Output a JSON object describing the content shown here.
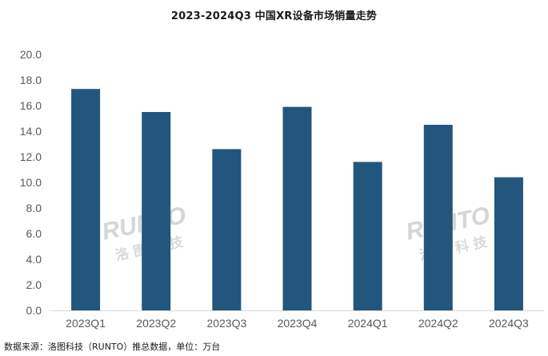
{
  "chart_data": {
    "type": "bar",
    "title": "2023-2024Q3 中国XR设备市场销量走势",
    "categories": [
      "2023Q1",
      "2023Q2",
      "2023Q3",
      "2023Q4",
      "2024Q1",
      "2024Q2",
      "2024Q3"
    ],
    "values": [
      17.3,
      15.5,
      12.6,
      15.9,
      11.6,
      14.5,
      10.4
    ],
    "ylim": [
      0,
      20
    ],
    "yticks": [
      "0.0",
      "2.0",
      "4.0",
      "6.0",
      "8.0",
      "10.0",
      "12.0",
      "14.0",
      "16.0",
      "18.0",
      "20.0"
    ],
    "xlabel": "",
    "ylabel": "",
    "grid": false,
    "bar_color": "#23567d",
    "axis_color": "#d9d9d9"
  },
  "source": "数据来源：洛图科技（RUNTO）推总数据，单位：万台",
  "watermark": {
    "logo_text": "RUNTO",
    "logo_subtext": "洛 图 科 技"
  }
}
